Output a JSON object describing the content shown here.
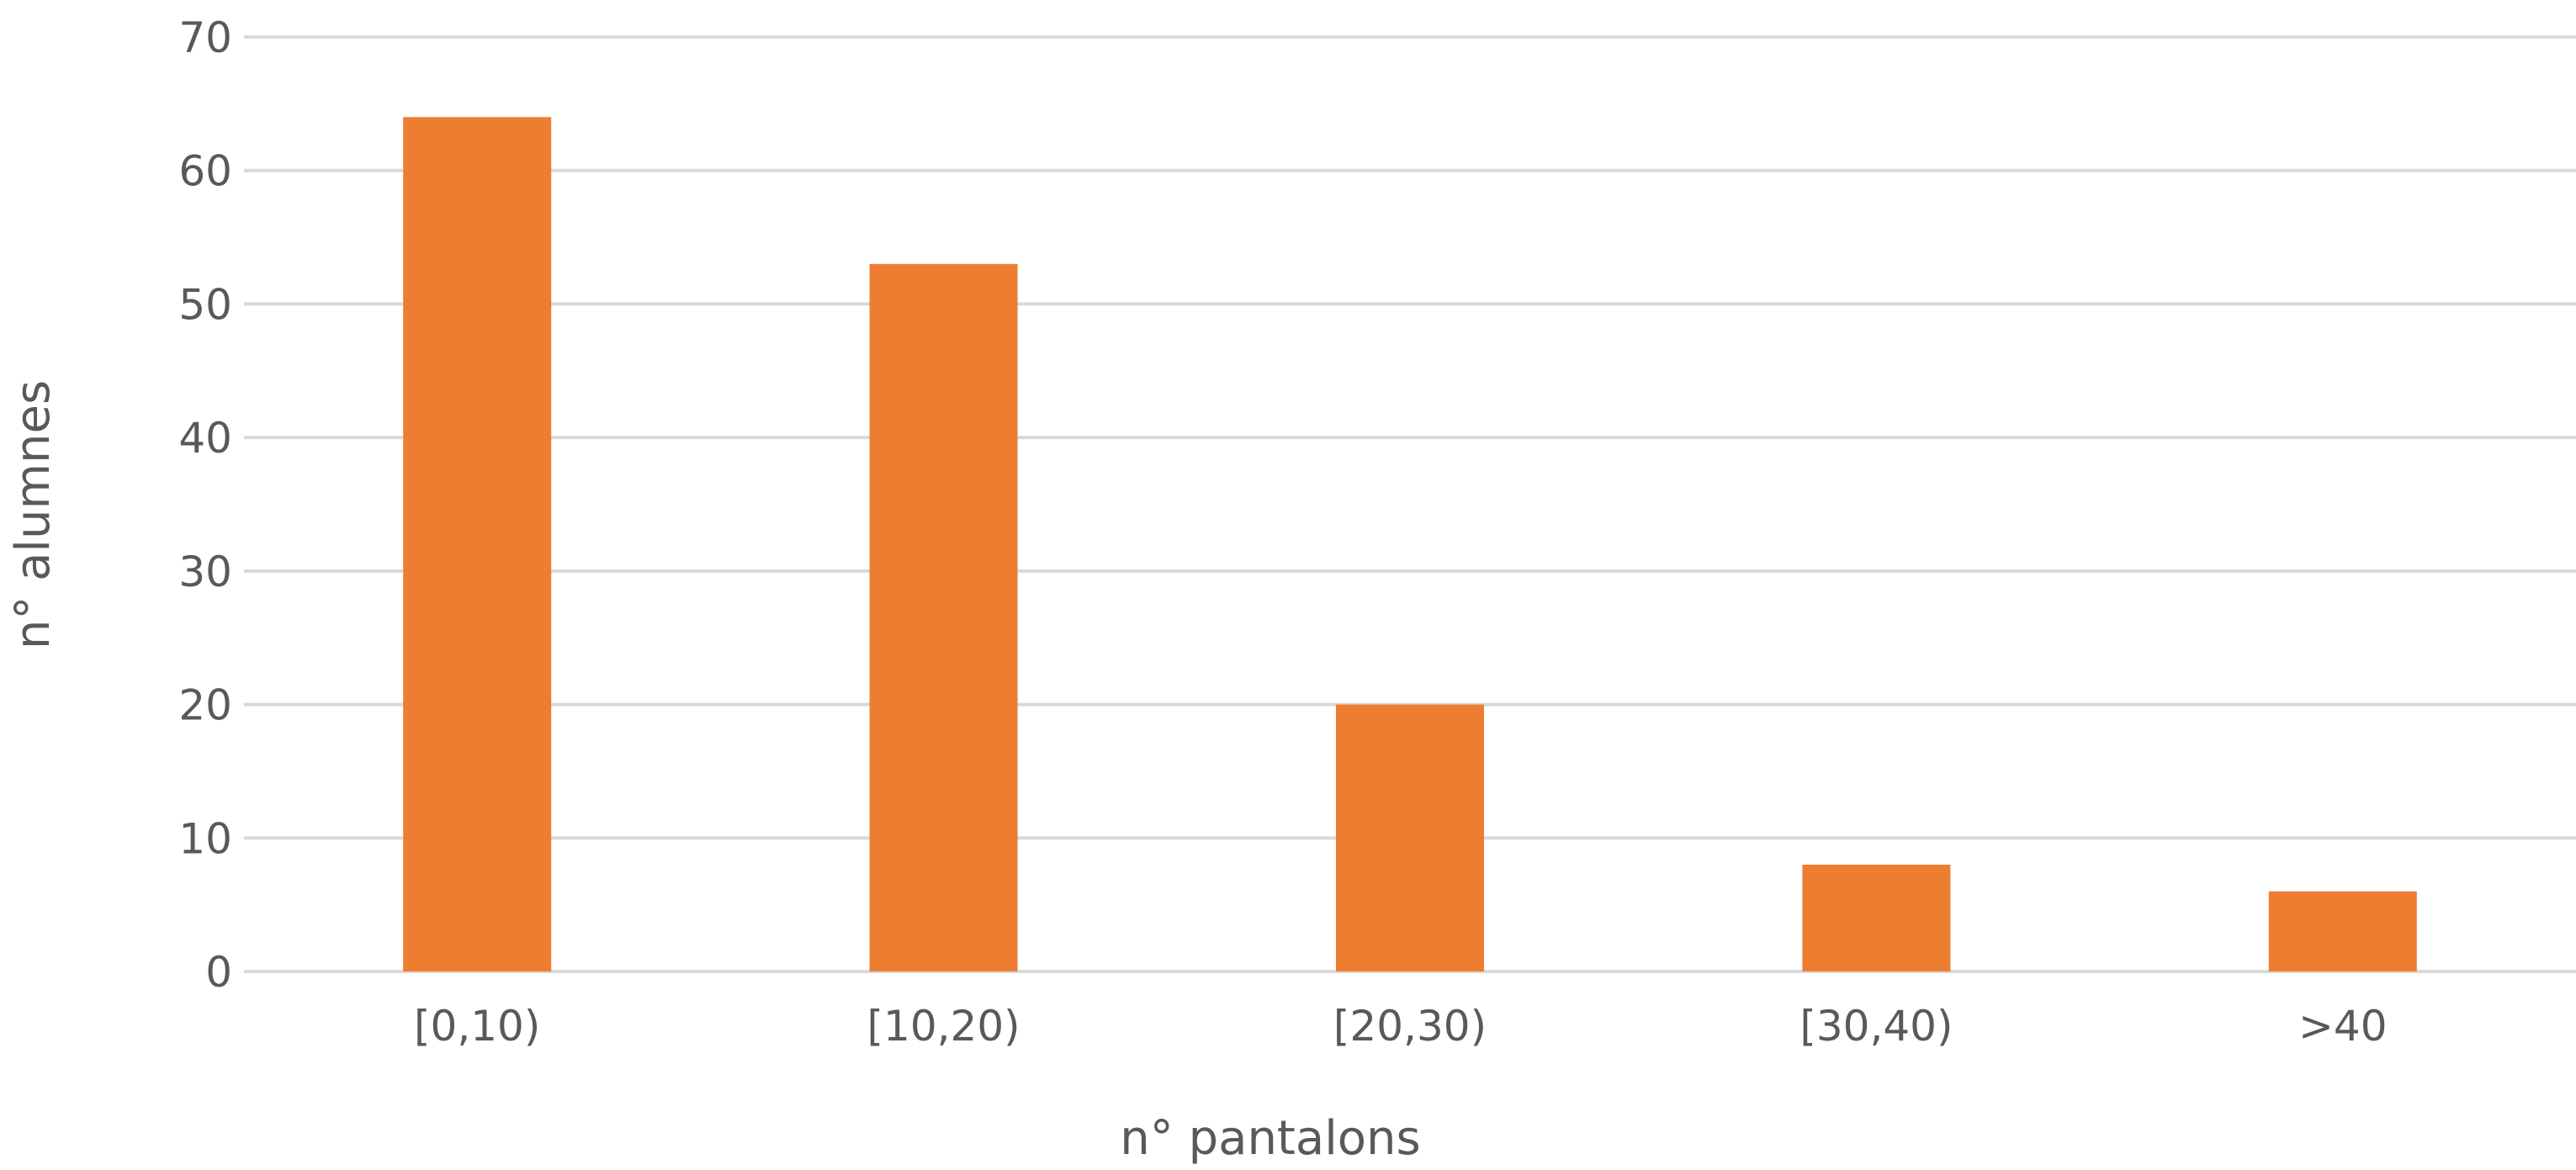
{
  "chart_data": {
    "type": "bar",
    "categories": [
      "[0,10)",
      "[10,20)",
      "[20,30)",
      "[30,40)",
      ">40"
    ],
    "series": [
      {
        "values": [
          64,
          53,
          20,
          8,
          6
        ]
      }
    ],
    "xlabel": "n° pantalons",
    "ylabel": "n° alumnes",
    "ylim": [
      0,
      70
    ],
    "yticks": [
      0,
      10,
      20,
      30,
      40,
      50,
      60,
      70
    ],
    "grid": true,
    "legend": "none",
    "colors": {
      "bar": "#ed7d31",
      "grid": "#d9d9d9",
      "text": "#595959"
    }
  }
}
